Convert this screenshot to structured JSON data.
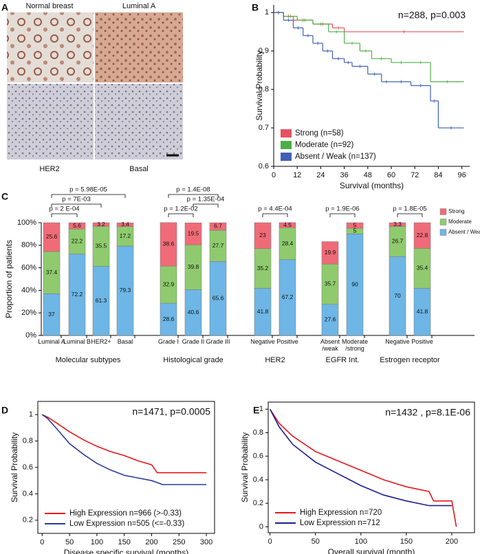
{
  "figure": {
    "panel_labels": [
      "A",
      "B",
      "C",
      "D",
      "E"
    ],
    "histology_labels": [
      "Normal breast",
      "Luminal A",
      "HER2",
      "Basal"
    ]
  },
  "chart_data": [
    {
      "type": "step",
      "annotation": "n=288, p=0.003",
      "xlabel": "Survival (months)",
      "ylabel": "Survival Probability",
      "xlim": [
        0,
        100
      ],
      "ylim": [
        0.6,
        1.02
      ],
      "xticks": [
        0,
        12,
        24,
        36,
        48,
        60,
        72,
        84,
        96
      ],
      "yticks": [
        0.6,
        0.7,
        0.8,
        0.9,
        1
      ],
      "legend": "lower left",
      "series": [
        {
          "name": "Strong (n=58)",
          "color": "#e8505f",
          "x": [
            0,
            5,
            10,
            20,
            30,
            36,
            97
          ],
          "values": [
            1,
            0.99,
            0.98,
            0.97,
            0.96,
            0.95,
            0.95
          ]
        },
        {
          "name": "Moderate (n=92)",
          "color": "#4caf45",
          "x": [
            0,
            5,
            12,
            20,
            28,
            36,
            44,
            50,
            60,
            70,
            80,
            97
          ],
          "values": [
            1,
            0.99,
            0.98,
            0.97,
            0.95,
            0.92,
            0.9,
            0.88,
            0.87,
            0.87,
            0.82,
            0.82
          ]
        },
        {
          "name": "Absent / Weak (n=137)",
          "color": "#3f5fb5",
          "x": [
            0,
            5,
            10,
            15,
            20,
            25,
            30,
            36,
            40,
            48,
            55,
            60,
            70,
            80,
            84,
            97
          ],
          "values": [
            1,
            0.98,
            0.96,
            0.94,
            0.92,
            0.9,
            0.88,
            0.87,
            0.86,
            0.84,
            0.82,
            0.82,
            0.81,
            0.77,
            0.7,
            0.7
          ]
        }
      ]
    },
    {
      "type": "bar",
      "stacked": true,
      "ylabel": "Proportion of patients",
      "categories": [
        "Luminal A",
        "Luminal B",
        "HER2+",
        "Basal",
        "Grade I",
        "Grade II",
        "Grade III",
        "Negative",
        "Positive",
        "Absent /weak",
        "Moderate /strong",
        "Negative",
        "Positive"
      ],
      "group_labels": [
        "Molecular subtypes",
        "Histological grade",
        "HER2",
        "EGFR Int.",
        "Estrogen receptor"
      ],
      "brackets": [
        "p = 2 E-04",
        "p = 7E-03",
        "p = 5.98E-05",
        "p = 1.4E-08",
        "p = 1.35E-04",
        "p = 1.2E-02",
        "p = 4.4E-04",
        "p = 1.9E-06",
        "p = 1.8E-05"
      ],
      "ylim": [
        0,
        100
      ],
      "yticks": [
        {
          "value": 0,
          "label": "0%"
        },
        {
          "value": 20,
          "label": "20%"
        },
        {
          "value": 40,
          "label": "40%"
        },
        {
          "value": 60,
          "label": "60%"
        },
        {
          "value": 80,
          "label": "80%"
        },
        {
          "value": 100,
          "label": "100%"
        }
      ],
      "legend": "upper right",
      "series": [
        {
          "name": "Strong",
          "color": "#f06b78",
          "values": [
            25.6,
            5.6,
            3.2,
            3.4,
            38.6,
            19.5,
            6.7,
            23,
            4.5,
            19.9,
            5,
            3.3,
            22.8
          ]
        },
        {
          "name": "Moderate",
          "color": "#8fcb6e",
          "values": [
            37.4,
            22.2,
            35.5,
            17.2,
            32.9,
            39.8,
            27.7,
            35.2,
            28.4,
            35.7,
            5,
            26.7,
            35.4
          ]
        },
        {
          "name": "Absent / Weak",
          "color": "#6db6e6",
          "values": [
            37,
            72.2,
            61.3,
            79.3,
            28.6,
            40.6,
            65.6,
            41.8,
            67.2,
            27.6,
            90,
            70,
            41.8
          ]
        }
      ]
    },
    {
      "type": "line",
      "annotation": "n=1471, p=0.0005",
      "xlabel": "Disease specific survival (months)",
      "ylabel": "Survival Probability",
      "xlim": [
        -8,
        315
      ],
      "ylim": [
        0.1,
        1.1
      ],
      "xticks": [
        0,
        50,
        100,
        150,
        200,
        250,
        300
      ],
      "yticks": [
        0.2,
        0.4,
        0.6,
        0.8,
        1
      ],
      "legend": "lower left",
      "series": [
        {
          "name": "High Expression n=966 (>-0.33)",
          "color": "#e8161b",
          "x": [
            0,
            10,
            25,
            50,
            75,
            100,
            125,
            150,
            175,
            200,
            210,
            300
          ],
          "values": [
            1,
            0.98,
            0.94,
            0.87,
            0.81,
            0.76,
            0.72,
            0.69,
            0.65,
            0.62,
            0.56,
            0.56
          ]
        },
        {
          "name": "Low Expression n=505 (<=-0.33)",
          "color": "#2a3a9a",
          "x": [
            0,
            10,
            25,
            50,
            75,
            100,
            125,
            150,
            175,
            200,
            220,
            300
          ],
          "values": [
            1,
            0.97,
            0.9,
            0.78,
            0.7,
            0.63,
            0.58,
            0.54,
            0.52,
            0.5,
            0.47,
            0.47
          ]
        }
      ]
    },
    {
      "type": "line",
      "annotation": "n=1432 , p=8.1E-06",
      "xlabel": "Overall survival (month)",
      "ylabel": "Survival Probability",
      "xlim": [
        -2,
        225
      ],
      "ylim": [
        -0.05,
        1.06
      ],
      "xticks": [
        0,
        50,
        100,
        150,
        200
      ],
      "yticks": [
        0,
        0.2,
        0.4,
        0.6,
        0.8,
        1
      ],
      "legend": "lower left",
      "series": [
        {
          "name": "High Expression  n=720",
          "color": "#e8161b",
          "x": [
            0,
            10,
            25,
            50,
            75,
            100,
            125,
            150,
            175,
            180,
            200,
            205
          ],
          "values": [
            1,
            0.88,
            0.77,
            0.64,
            0.56,
            0.48,
            0.4,
            0.34,
            0.3,
            0.22,
            0.22,
            0
          ]
        },
        {
          "name": "Low Expression  n=712",
          "color": "#1c1e8c",
          "x": [
            0,
            10,
            25,
            50,
            75,
            100,
            125,
            150,
            175,
            200
          ],
          "values": [
            1,
            0.85,
            0.7,
            0.55,
            0.45,
            0.35,
            0.27,
            0.22,
            0.18,
            0.18
          ]
        }
      ]
    }
  ]
}
